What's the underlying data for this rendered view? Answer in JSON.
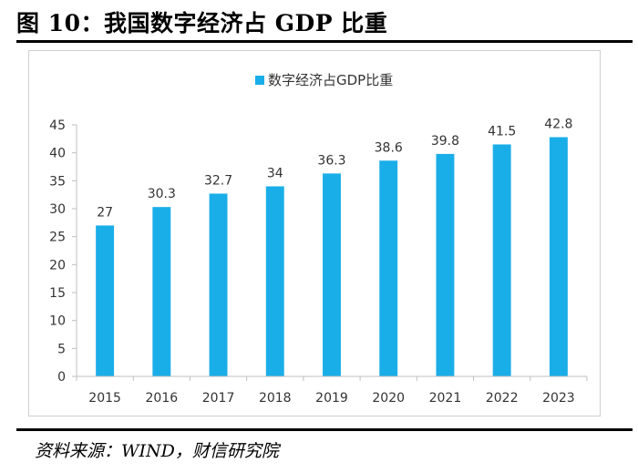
{
  "figure": {
    "title": "图 10：我国数字经济占 GDP 比重",
    "source": "资料来源：WIND，财信研究院"
  },
  "colors": {
    "bar": "#1aaee8",
    "axis": "#bfbfbf",
    "text": "#333333"
  },
  "chart_data": {
    "type": "bar",
    "title": "",
    "legend": [
      "数字经济占GDP比重"
    ],
    "legend_position": "top-center",
    "categories": [
      "2015",
      "2016",
      "2017",
      "2018",
      "2019",
      "2020",
      "2021",
      "2022",
      "2023"
    ],
    "series": [
      {
        "name": "数字经济占GDP比重",
        "values": [
          27,
          30.3,
          32.7,
          34,
          36.3,
          38.6,
          39.8,
          41.5,
          42.8
        ],
        "labels": [
          "27",
          "30.3",
          "32.7",
          "34",
          "36.3",
          "38.6",
          "39.8",
          "41.5",
          "42.8"
        ]
      }
    ],
    "xlabel": "",
    "ylabel": "",
    "ylim": [
      0,
      45
    ],
    "yticks": [
      0,
      5,
      10,
      15,
      20,
      25,
      30,
      35,
      40,
      45
    ],
    "grid": false
  }
}
